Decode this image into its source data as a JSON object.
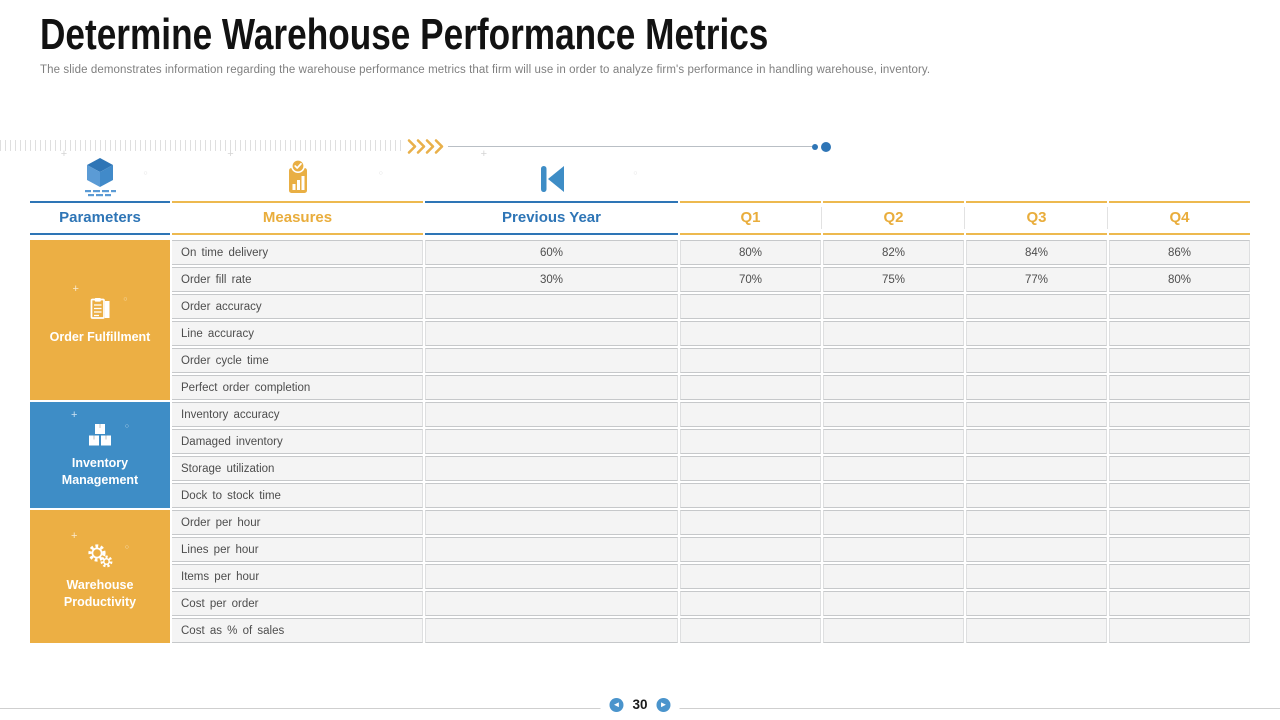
{
  "slide": {
    "title": "Determine Warehouse Performance Metrics",
    "subtitle": "The slide demonstrates information regarding the warehouse performance metrics that firm will use in order to analyze firm's performance in handling warehouse, inventory.",
    "page_number": "30"
  },
  "divider": {
    "chevrons_icon": "quad-chevron-right-icon",
    "end_dots_icon": "progress-dots-icon"
  },
  "table": {
    "columns": [
      {
        "label": "Parameters",
        "icon": "cube-icon",
        "accent": "blue"
      },
      {
        "label": "Measures",
        "icon": "checked-report-icon",
        "accent": "orange"
      },
      {
        "label": "Previous Year",
        "icon": "skip-back-icon",
        "accent": "blue"
      },
      {
        "label": "Q1",
        "accent": "orange"
      },
      {
        "label": "Q2",
        "accent": "orange"
      },
      {
        "label": "Q3",
        "accent": "orange"
      },
      {
        "label": "Q4",
        "accent": "orange"
      }
    ],
    "groups": [
      {
        "label": "Order Fulfillment",
        "icon": "clipboard-icon",
        "accent": "orange",
        "rows": [
          {
            "measure": "On time delivery",
            "previous_year": "60%",
            "q1": "80%",
            "q2": "82%",
            "q3": "84%",
            "q4": "86%"
          },
          {
            "measure": "Order fill rate",
            "previous_year": "30%",
            "q1": "70%",
            "q2": "75%",
            "q3": "77%",
            "q4": "80%"
          },
          {
            "measure": "Order accuracy",
            "previous_year": "",
            "q1": "",
            "q2": "",
            "q3": "",
            "q4": ""
          },
          {
            "measure": "Line accuracy",
            "previous_year": "",
            "q1": "",
            "q2": "",
            "q3": "",
            "q4": ""
          },
          {
            "measure": "Order cycle time",
            "previous_year": "",
            "q1": "",
            "q2": "",
            "q3": "",
            "q4": ""
          },
          {
            "measure": "Perfect order completion",
            "previous_year": "",
            "q1": "",
            "q2": "",
            "q3": "",
            "q4": ""
          }
        ]
      },
      {
        "label": "Inventory Management",
        "icon": "boxes-icon",
        "accent": "blue",
        "rows": [
          {
            "measure": "Inventory accuracy",
            "previous_year": "",
            "q1": "",
            "q2": "",
            "q3": "",
            "q4": ""
          },
          {
            "measure": "Damaged inventory",
            "previous_year": "",
            "q1": "",
            "q2": "",
            "q3": "",
            "q4": ""
          },
          {
            "measure": "Storage utilization",
            "previous_year": "",
            "q1": "",
            "q2": "",
            "q3": "",
            "q4": ""
          },
          {
            "measure": "Dock to stock time",
            "previous_year": "",
            "q1": "",
            "q2": "",
            "q3": "",
            "q4": ""
          }
        ]
      },
      {
        "label": "Warehouse Productivity",
        "icon": "gears-icon",
        "accent": "orange",
        "rows": [
          {
            "measure": "Order per hour",
            "previous_year": "",
            "q1": "",
            "q2": "",
            "q3": "",
            "q4": ""
          },
          {
            "measure": "Lines per hour",
            "previous_year": "",
            "q1": "",
            "q2": "",
            "q3": "",
            "q4": ""
          },
          {
            "measure": "Items per hour",
            "previous_year": "",
            "q1": "",
            "q2": "",
            "q3": "",
            "q4": ""
          },
          {
            "measure": "Cost per order",
            "previous_year": "",
            "q1": "",
            "q2": "",
            "q3": "",
            "q4": ""
          },
          {
            "measure": "Cost as % of sales",
            "previous_year": "",
            "q1": "",
            "q2": "",
            "q3": "",
            "q4": ""
          }
        ]
      }
    ]
  },
  "footer": {
    "prev_icon": "circle-arrow-left-icon",
    "next_icon": "circle-arrow-right-icon"
  },
  "colors": {
    "accent_orange": "#ECAF44",
    "accent_blue": "#3E8DC6",
    "header_text_blue": "#2E75B6",
    "header_text_orange": "#E9AD3C",
    "row_background": "#F4F4F4",
    "row_border": "#C6C8CA"
  }
}
